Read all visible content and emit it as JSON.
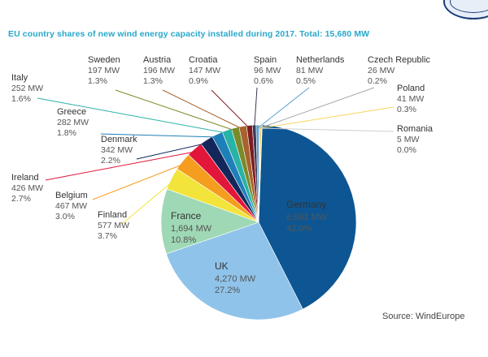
{
  "title": "EU country shares of new wind energy capacity installed during 2017. Total: 15,680 MW",
  "source": "Source: WindEurope",
  "chart_data": {
    "type": "pie",
    "title": "EU country shares of new wind energy capacity installed during 2017. Total: 15,680 MW",
    "slices": [
      {
        "key": "germany",
        "name": "Germany",
        "value": 6581,
        "mw": "6,581 MW",
        "pct": "42.0%",
        "color": "#0d5693",
        "text_color": "#ffffff"
      },
      {
        "key": "uk",
        "name": "UK",
        "value": 4270,
        "mw": "4,270 MW",
        "pct": "27.2%",
        "color": "#8fc3ea",
        "text_color": "#ffffff"
      },
      {
        "key": "france",
        "name": "France",
        "value": 1694,
        "mw": "1,694 MW",
        "pct": "10.8%",
        "color": "#9fd8b5",
        "text_color": "#2f6f4e"
      },
      {
        "key": "finland",
        "name": "Finland",
        "value": 577,
        "mw": "577 MW",
        "pct": "3.7%",
        "color": "#f2e43a",
        "text_color": "#333333"
      },
      {
        "key": "belgium",
        "name": "Belgium",
        "value": 467,
        "mw": "467 MW",
        "pct": "3.0%",
        "color": "#f59d1e",
        "text_color": "#333333"
      },
      {
        "key": "ireland",
        "name": "Ireland",
        "value": 426,
        "mw": "426 MW",
        "pct": "2.7%",
        "color": "#e2163a",
        "text_color": "#333333"
      },
      {
        "key": "denmark",
        "name": "Denmark",
        "value": 342,
        "mw": "342 MW",
        "pct": "2.2%",
        "color": "#13275a",
        "text_color": "#333333"
      },
      {
        "key": "greece",
        "name": "Greece",
        "value": 282,
        "mw": "282 MW",
        "pct": "1.8%",
        "color": "#1f7fb8",
        "text_color": "#333333"
      },
      {
        "key": "italy",
        "name": "Italy",
        "value": 252,
        "mw": "252 MW",
        "pct": "1.6%",
        "color": "#29b3a6",
        "text_color": "#333333"
      },
      {
        "key": "sweden",
        "name": "Sweden",
        "value": 197,
        "mw": "197 MW",
        "pct": "1.3%",
        "color": "#7a8a2a",
        "text_color": "#333333"
      },
      {
        "key": "austria",
        "name": "Austria",
        "value": 196,
        "mw": "196 MW",
        "pct": "1.3%",
        "color": "#a8622e",
        "text_color": "#333333"
      },
      {
        "key": "croatia",
        "name": "Croatia",
        "value": 147,
        "mw": "147 MW",
        "pct": "0.9%",
        "color": "#7e1b22",
        "text_color": "#333333"
      },
      {
        "key": "spain",
        "name": "Spain",
        "value": 96,
        "mw": "96 MW",
        "pct": "0.6%",
        "color": "#3a3a55",
        "text_color": "#333333"
      },
      {
        "key": "netherlands",
        "name": "Netherlands",
        "value": 81,
        "mw": "81 MW",
        "pct": "0.5%",
        "color": "#5aa0d0",
        "text_color": "#333333"
      },
      {
        "key": "czech",
        "name": "Czech Republic",
        "value": 26,
        "mw": "26 MW",
        "pct": "0.2%",
        "color": "#a9a9a9",
        "text_color": "#333333"
      },
      {
        "key": "poland",
        "name": "Poland",
        "value": 41,
        "mw": "41 MW",
        "pct": "0.3%",
        "color": "#f6d65e",
        "text_color": "#333333"
      },
      {
        "key": "romania",
        "name": "Romania",
        "value": 5,
        "mw": "5 MW",
        "pct": "0.0%",
        "color": "#cfcfcf",
        "text_color": "#333333"
      }
    ]
  }
}
